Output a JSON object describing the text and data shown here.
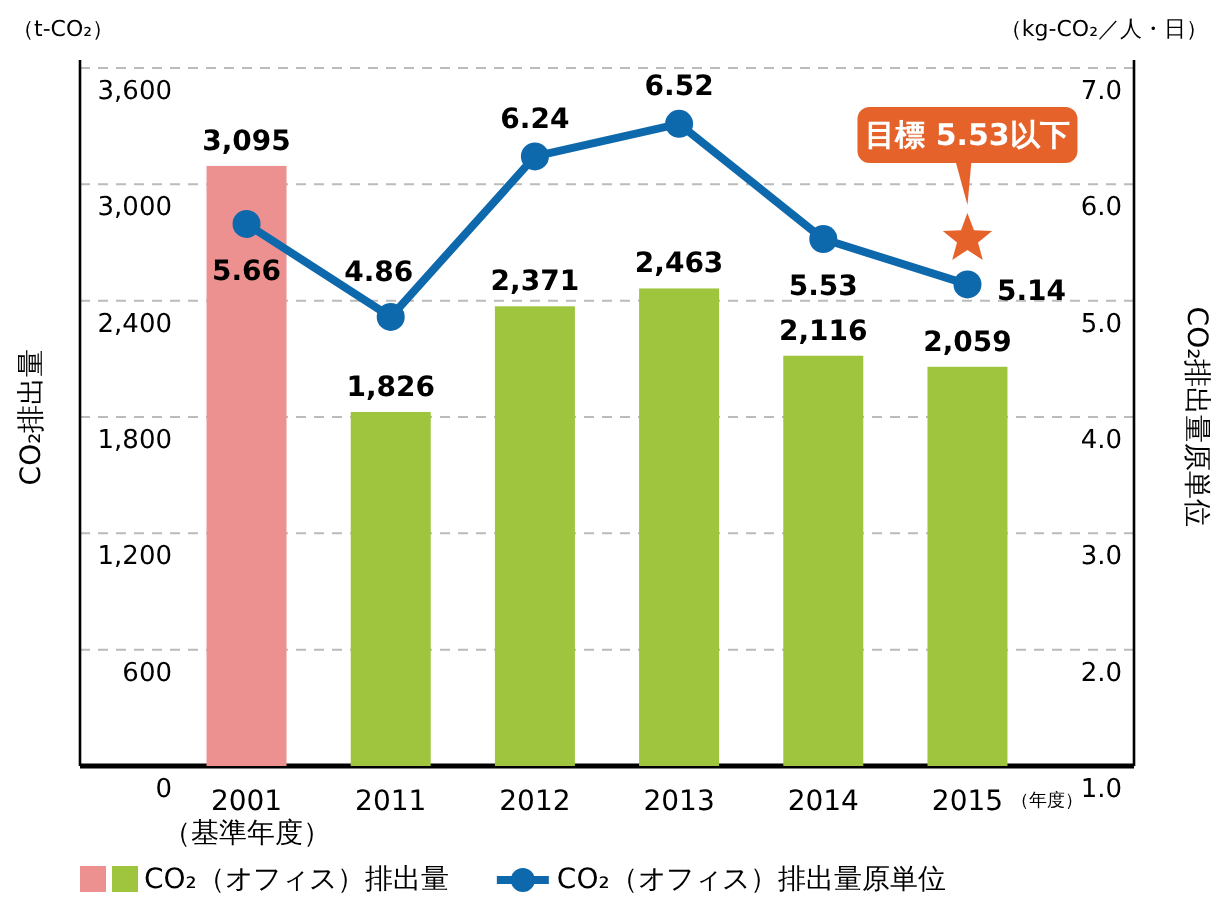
{
  "chart_data": {
    "type": "bar",
    "categories": [
      "2001\n（基準年度）",
      "2011",
      "2012",
      "2013",
      "2014",
      "2015"
    ],
    "xlabel": "（年度）",
    "ylabel": "CO₂排出量",
    "y2label": "CO₂排出量原単位",
    "series": [
      {
        "name": "CO₂（オフィス）排出量",
        "type": "bar",
        "colors": [
          "#ec9190",
          "#9fc43d",
          "#9fc43d",
          "#9fc43d",
          "#9fc43d",
          "#9fc43d"
        ],
        "values": [
          3095,
          1826,
          2371,
          2463,
          2116,
          2059
        ],
        "value_labels": [
          "3,095",
          "1,826",
          "2,371",
          "2,463",
          "2,116",
          "2,059"
        ]
      },
      {
        "name": "CO₂（オフィス）排出量原単位",
        "type": "line",
        "axis": "y2",
        "color": "#0d68ac",
        "marker": "circle",
        "values": [
          5.66,
          4.86,
          6.24,
          6.52,
          5.53,
          5.14
        ],
        "value_labels": [
          "5.66",
          "4.86",
          "6.24",
          "6.52",
          "5.53",
          "5.14"
        ]
      },
      {
        "type": "scatter",
        "axis": "y2",
        "values": [
          null,
          null,
          null,
          null,
          null,
          5.53
        ],
        "marker": "star",
        "color": "#e5622a"
      }
    ],
    "ylim": [
      0,
      3600
    ],
    "yticks": [
      0,
      {
        "value": 600,
        "label": "600"
      },
      {
        "value": 1200,
        "label": "1,200"
      },
      {
        "value": 1800,
        "label": "1,800"
      },
      {
        "value": 2400,
        "label": "2,400"
      },
      {
        "value": 3000,
        "label": "3,000"
      },
      {
        "value": 3600,
        "label": "3,600"
      }
    ],
    "y2lim": [
      1,
      7
    ],
    "y2ticks": [
      {
        "value": 1,
        "label": "1.0"
      },
      {
        "value": 2,
        "label": "2.0"
      },
      {
        "value": 3,
        "label": "3.0"
      },
      {
        "value": 4,
        "label": "4.0"
      },
      {
        "value": 5,
        "label": "5.0"
      },
      {
        "value": 6,
        "label": "6.0"
      },
      {
        "value": 7,
        "label": "7.0"
      }
    ],
    "grid": "y",
    "legend": "bottom",
    "annotations": [
      "（t-CO₂）",
      "（kg-CO₂／人・日）",
      "目標 5.53以下"
    ]
  }
}
